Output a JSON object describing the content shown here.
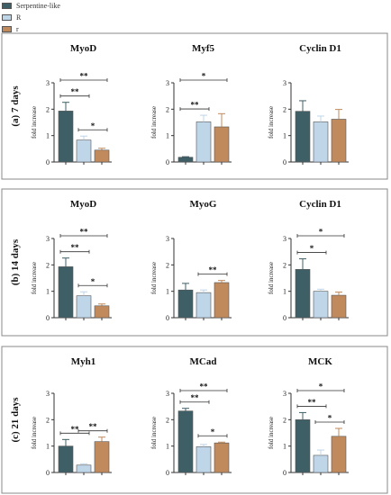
{
  "legend": [
    {
      "label": "Serpentine-like",
      "color": "#3f5f66"
    },
    {
      "label": "R",
      "color": "#bfd5e8"
    },
    {
      "label": "r",
      "color": "#c08a5c"
    }
  ],
  "chart_data": [
    {
      "type": "bar",
      "section": "(a) 7 days",
      "title": "MyoD",
      "ylabel": "fold increase",
      "ylim": [
        0,
        3
      ],
      "yticks": [
        0,
        1,
        2,
        3
      ],
      "categories": [
        "Serpentine-like",
        "R",
        "r"
      ],
      "values": [
        1.93,
        0.83,
        0.45
      ],
      "errors": [
        0.33,
        0.15,
        0.07
      ],
      "significance": [
        {
          "from": 0,
          "to": 2,
          "label": "**"
        },
        {
          "from": 0,
          "to": 1,
          "label": "**"
        },
        {
          "from": 1,
          "to": 2,
          "label": "*"
        }
      ]
    },
    {
      "type": "bar",
      "section": "(a) 7 days",
      "title": "Myf5",
      "ylabel": "fold increase",
      "ylim": [
        0,
        3
      ],
      "yticks": [
        0,
        1,
        2,
        3
      ],
      "categories": [
        "Serpentine-like",
        "R",
        "r"
      ],
      "values": [
        0.18,
        1.52,
        1.33
      ],
      "errors": [
        0.02,
        0.25,
        0.5
      ],
      "significance": [
        {
          "from": 0,
          "to": 2,
          "label": "*"
        },
        {
          "from": 0,
          "to": 1,
          "label": "**"
        }
      ]
    },
    {
      "type": "bar",
      "section": "(a) 7 days",
      "title": "Cyclin D1",
      "ylabel": "fold increase",
      "ylim": [
        0,
        3
      ],
      "yticks": [
        0,
        1,
        2,
        3
      ],
      "categories": [
        "Serpentine-like",
        "R",
        "r"
      ],
      "values": [
        1.92,
        1.52,
        1.62
      ],
      "errors": [
        0.4,
        0.22,
        0.37
      ],
      "significance": []
    },
    {
      "type": "bar",
      "section": "(b) 14 days",
      "title": "MyoD",
      "ylabel": "fold increase",
      "ylim": [
        0,
        3
      ],
      "yticks": [
        0,
        1,
        2,
        3
      ],
      "categories": [
        "Serpentine-like",
        "R",
        "r"
      ],
      "values": [
        1.93,
        0.83,
        0.45
      ],
      "errors": [
        0.33,
        0.15,
        0.07
      ],
      "significance": [
        {
          "from": 0,
          "to": 2,
          "label": "**"
        },
        {
          "from": 0,
          "to": 1,
          "label": "**"
        },
        {
          "from": 1,
          "to": 2,
          "label": "*"
        }
      ]
    },
    {
      "type": "bar",
      "section": "(b) 14 days",
      "title": "MyoG",
      "ylabel": "fold increase",
      "ylim": [
        0,
        3
      ],
      "yticks": [
        0,
        1,
        2,
        3
      ],
      "categories": [
        "Serpentine-like",
        "R",
        "r"
      ],
      "values": [
        1.05,
        0.95,
        1.33
      ],
      "errors": [
        0.25,
        0.1,
        0.08
      ],
      "significance": [
        {
          "from": 1,
          "to": 2,
          "label": "**"
        }
      ]
    },
    {
      "type": "bar",
      "section": "(b) 14 days",
      "title": "Cyclin D1",
      "ylabel": "fold increase",
      "ylim": [
        0,
        3
      ],
      "yticks": [
        0,
        1,
        2,
        3
      ],
      "categories": [
        "Serpentine-like",
        "R",
        "r"
      ],
      "values": [
        1.83,
        1.0,
        0.85
      ],
      "errors": [
        0.4,
        0.08,
        0.12
      ],
      "significance": [
        {
          "from": 0,
          "to": 2,
          "label": "*"
        },
        {
          "from": 0,
          "to": 1,
          "label": "*"
        }
      ]
    },
    {
      "type": "bar",
      "section": "(c) 21 days",
      "title": "Myh1",
      "ylabel": "fold increase",
      "ylim": [
        0,
        3
      ],
      "yticks": [
        0,
        1,
        2,
        3
      ],
      "categories": [
        "Serpentine-like",
        "R",
        "r"
      ],
      "values": [
        1.0,
        0.28,
        1.17
      ],
      "errors": [
        0.25,
        0.05,
        0.17
      ],
      "significance": [
        {
          "from": 0,
          "to": 1,
          "label": "**"
        },
        {
          "from": 1,
          "to": 2,
          "label": "**"
        }
      ]
    },
    {
      "type": "bar",
      "section": "(c) 21 days",
      "title": "MCad",
      "ylabel": "fold increase",
      "ylim": [
        0,
        3
      ],
      "yticks": [
        0,
        1,
        2,
        3
      ],
      "categories": [
        "Serpentine-like",
        "R",
        "r"
      ],
      "values": [
        2.33,
        0.98,
        1.12
      ],
      "errors": [
        0.1,
        0.08,
        0.03
      ],
      "significance": [
        {
          "from": 0,
          "to": 2,
          "label": "**"
        },
        {
          "from": 0,
          "to": 1,
          "label": "**"
        },
        {
          "from": 1,
          "to": 2,
          "label": "*"
        }
      ]
    },
    {
      "type": "bar",
      "section": "(c) 21 days",
      "title": "MCK",
      "ylabel": "fold increase",
      "ylim": [
        0,
        3
      ],
      "yticks": [
        0,
        1,
        2,
        3
      ],
      "categories": [
        "Serpentine-like",
        "R",
        "r"
      ],
      "values": [
        2.0,
        0.65,
        1.37
      ],
      "errors": [
        0.27,
        0.2,
        0.3
      ],
      "significance": [
        {
          "from": 0,
          "to": 2,
          "label": "*"
        },
        {
          "from": 0,
          "to": 1,
          "label": "**"
        },
        {
          "from": 1,
          "to": 2,
          "label": "*"
        }
      ]
    }
  ]
}
